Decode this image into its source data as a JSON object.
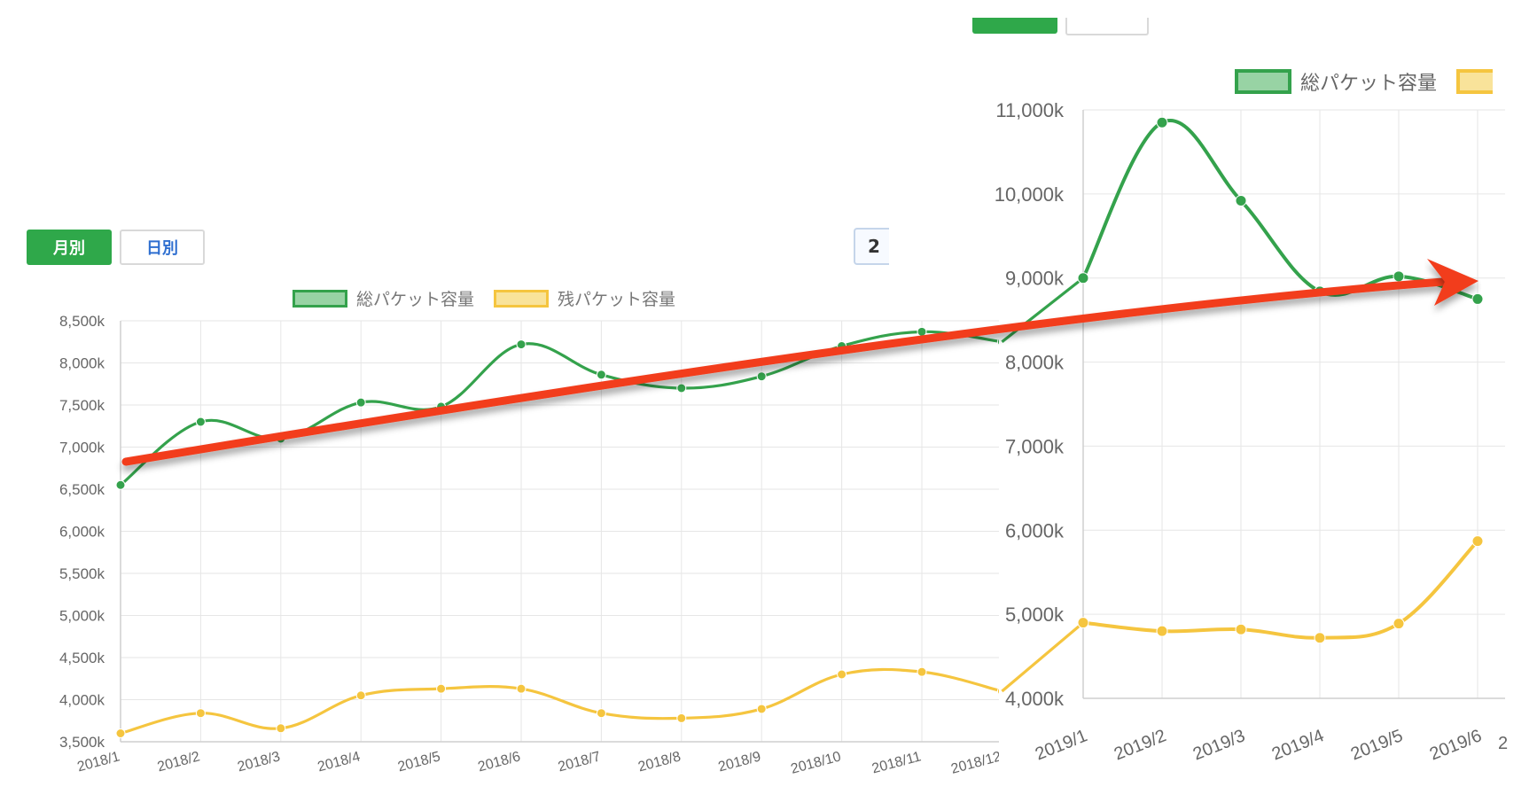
{
  "controls": {
    "monthly_label": "月別",
    "daily_label": "日別",
    "date_input_value": "2"
  },
  "colors": {
    "total": "#34a24c",
    "total_fill": "#98d3a4",
    "remaining": "#f5c53f",
    "remaining_fill": "#f9e39a",
    "trend": "#f23d1f",
    "grid": "#e6e6e6",
    "axis_text": "#666666"
  },
  "chart_data": [
    {
      "type": "line",
      "x": [
        "2018/1",
        "2018/2",
        "2018/3",
        "2018/4",
        "2018/5",
        "2018/6",
        "2018/7",
        "2018/8",
        "2018/9",
        "2018/10",
        "2018/11",
        "2018/12"
      ],
      "series": [
        {
          "name": "総パケット容量",
          "values": [
            6550,
            7300,
            7100,
            7530,
            7480,
            8220,
            7860,
            7700,
            7840,
            8200,
            8370,
            8250
          ]
        },
        {
          "name": "残パケット容量",
          "values": [
            3600,
            3840,
            3660,
            4050,
            4130,
            4130,
            3840,
            3780,
            3890,
            4300,
            4330,
            4100
          ]
        }
      ],
      "y_ticks": [
        "8,500k",
        "8,000k",
        "7,500k",
        "7,000k",
        "6,500k",
        "6,000k",
        "5,500k",
        "5,000k",
        "4,500k",
        "4,000k",
        "3,500k"
      ],
      "ylim": [
        3500,
        8500
      ],
      "grid": true,
      "legend": "top-center"
    },
    {
      "type": "line",
      "x": [
        "2019/1",
        "2019/2",
        "2019/3",
        "2019/4",
        "2019/5",
        "2019/6"
      ],
      "x_extra_tick": "2",
      "series": [
        {
          "name": "総パケット容量",
          "values": [
            9000,
            10850,
            9920,
            8840,
            9020,
            8750
          ]
        },
        {
          "name": "残パケット容量",
          "values": [
            4900,
            4800,
            4820,
            4720,
            4890,
            5870
          ]
        }
      ],
      "y_ticks": [
        "11,000k",
        "10,000k",
        "9,000k",
        "8,000k",
        "7,000k",
        "6,000k",
        "5,000k",
        "4,000k"
      ],
      "ylim": [
        4000,
        11000
      ],
      "grid": true,
      "legend": "top-right"
    }
  ]
}
